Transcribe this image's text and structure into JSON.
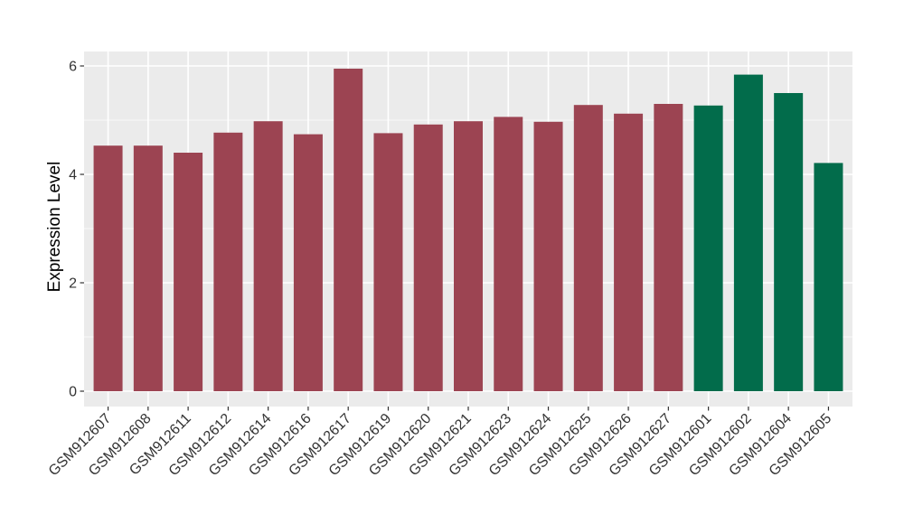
{
  "chart_data": {
    "type": "bar",
    "title": "",
    "xlabel": "",
    "ylabel": "Expression Level",
    "ylim": [
      0,
      6
    ],
    "yticks": [
      0,
      2,
      4,
      6
    ],
    "yticks_minor": [
      1,
      3,
      5
    ],
    "grid": "on",
    "legend": "none",
    "panel_background": "#EBEBEB",
    "grid_color": "#FFFFFF",
    "tick_color": "#333333",
    "tick_label_color": "#333333",
    "group_colors": {
      "red_group": "#9C4452",
      "green_group": "#026C4B"
    },
    "categories": [
      "GSM912607",
      "GSM912608",
      "GSM912611",
      "GSM912612",
      "GSM912614",
      "GSM912616",
      "GSM912617",
      "GSM912619",
      "GSM912620",
      "GSM912621",
      "GSM912623",
      "GSM912624",
      "GSM912625",
      "GSM912626",
      "GSM912627",
      "GSM912601",
      "GSM912602",
      "GSM912604",
      "GSM912605"
    ],
    "values": [
      4.53,
      4.53,
      4.4,
      4.77,
      4.98,
      4.74,
      5.95,
      4.76,
      4.92,
      4.98,
      5.06,
      4.97,
      5.28,
      5.12,
      5.3,
      5.27,
      5.84,
      5.5,
      4.21
    ],
    "bar_colors": [
      "#9C4452",
      "#9C4452",
      "#9C4452",
      "#9C4452",
      "#9C4452",
      "#9C4452",
      "#9C4452",
      "#9C4452",
      "#9C4452",
      "#9C4452",
      "#9C4452",
      "#9C4452",
      "#9C4452",
      "#9C4452",
      "#9C4452",
      "#026C4B",
      "#026C4B",
      "#026C4B",
      "#026C4B"
    ]
  }
}
